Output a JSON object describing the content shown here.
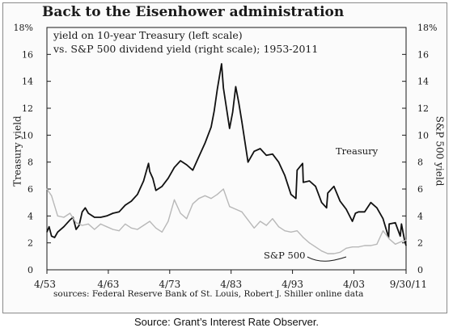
{
  "chart_data": {
    "type": "line",
    "title": "Back to the Eisenhower administration",
    "subtitle_lines": [
      "yield on 10-year Treasury (left scale)",
      "vs. S&P 500 dividend yield (right scale); 1953-2011"
    ],
    "ylabel_left": "Treasury yield",
    "ylabel_right": "S&P 500 yield",
    "ylim": [
      0,
      18
    ],
    "y_ticks": [
      "0",
      "2",
      "4",
      "6",
      "8",
      "10",
      "12",
      "14",
      "16",
      "18%"
    ],
    "x_tick_labels": [
      "4/53",
      "4/63",
      "4/73",
      "4/83",
      "4/93",
      "4/03",
      "9/30/11"
    ],
    "x_tick_years": [
      1953.25,
      1963.25,
      1973.25,
      1983.25,
      1993.25,
      2003.25,
      2011.75
    ],
    "xlim": [
      1953.25,
      2011.75
    ],
    "grid": false,
    "series": [
      {
        "name": "Treasury",
        "color": "#111111",
        "x": [
          1953.25,
          1953.6,
          1954,
          1954.5,
          1955,
          1956,
          1957,
          1957.5,
          1958,
          1958.5,
          1959,
          1959.5,
          1960,
          1961,
          1962,
          1963,
          1964,
          1965,
          1966,
          1967,
          1968,
          1969,
          1969.8,
          1970,
          1970.5,
          1971,
          1972,
          1973,
          1974,
          1975,
          1976,
          1977,
          1978,
          1979,
          1980,
          1980.5,
          1981,
          1981.7,
          1982,
          1983,
          1983.5,
          1984,
          1984.5,
          1985,
          1986,
          1987,
          1988,
          1989,
          1990,
          1991,
          1992,
          1993,
          1993.8,
          1994,
          1994.9,
          1995,
          1996,
          1997,
          1998,
          1998.8,
          1999,
          2000,
          2001,
          2002,
          2003,
          2003.5,
          2004,
          2005,
          2006,
          2007,
          2008,
          2008.9,
          2009,
          2010,
          2010.8,
          2011,
          2011.5,
          2011.75
        ],
        "y": [
          2.8,
          3.2,
          2.5,
          2.4,
          2.8,
          3.2,
          3.7,
          3.9,
          3.0,
          3.3,
          4.3,
          4.6,
          4.2,
          3.9,
          3.9,
          4.0,
          4.2,
          4.3,
          4.8,
          5.1,
          5.6,
          6.6,
          7.9,
          7.3,
          6.8,
          5.9,
          6.2,
          6.8,
          7.6,
          8.1,
          7.8,
          7.4,
          8.4,
          9.4,
          10.6,
          11.8,
          13.4,
          15.3,
          13.5,
          10.5,
          11.7,
          13.6,
          12.4,
          11.0,
          8.0,
          8.8,
          9.0,
          8.5,
          8.6,
          8.0,
          7.0,
          5.6,
          5.3,
          7.4,
          7.9,
          6.5,
          6.6,
          6.2,
          5.0,
          4.6,
          5.7,
          6.2,
          5.1,
          4.5,
          3.6,
          4.2,
          4.3,
          4.3,
          5.0,
          4.6,
          3.8,
          2.4,
          3.4,
          3.5,
          2.5,
          3.4,
          2.2,
          1.8
        ]
      },
      {
        "name": "S&P 500",
        "color": "#b8b8b8",
        "x": [
          1953.25,
          1954,
          1955,
          1956,
          1957,
          1958,
          1959,
          1960,
          1961,
          1962,
          1963,
          1964,
          1965,
          1966,
          1967,
          1968,
          1969,
          1970,
          1971,
          1972,
          1973,
          1974,
          1975,
          1976,
          1977,
          1978,
          1979,
          1980,
          1981,
          1982,
          1983,
          1984,
          1985,
          1986,
          1987,
          1988,
          1989,
          1990,
          1991,
          1992,
          1993,
          1994,
          1995,
          1996,
          1997,
          1998,
          1999,
          2000,
          2001,
          2002,
          2003,
          2004,
          2005,
          2006,
          2007,
          2008,
          2009,
          2010,
          2011,
          2011.75
        ],
        "y": [
          6.0,
          5.5,
          4.0,
          3.9,
          4.2,
          3.5,
          3.3,
          3.4,
          3.0,
          3.4,
          3.2,
          3.0,
          2.9,
          3.4,
          3.1,
          3.0,
          3.3,
          3.6,
          3.1,
          2.8,
          3.6,
          5.2,
          4.2,
          3.8,
          4.9,
          5.3,
          5.5,
          5.3,
          5.6,
          6.0,
          4.7,
          4.5,
          4.3,
          3.7,
          3.1,
          3.6,
          3.3,
          3.8,
          3.2,
          2.9,
          2.8,
          2.9,
          2.4,
          2.0,
          1.7,
          1.4,
          1.2,
          1.2,
          1.3,
          1.6,
          1.7,
          1.7,
          1.8,
          1.8,
          1.9,
          2.9,
          2.3,
          1.9,
          2.1,
          2.2
        ]
      }
    ],
    "annotations": [
      "Treasury",
      "S&P 500"
    ]
  },
  "sources": "sources: Federal Reserve Bank of St. Louis, Robert J. Shiller online data",
  "caption": "Source: Grant’s Interest Rate Observer."
}
